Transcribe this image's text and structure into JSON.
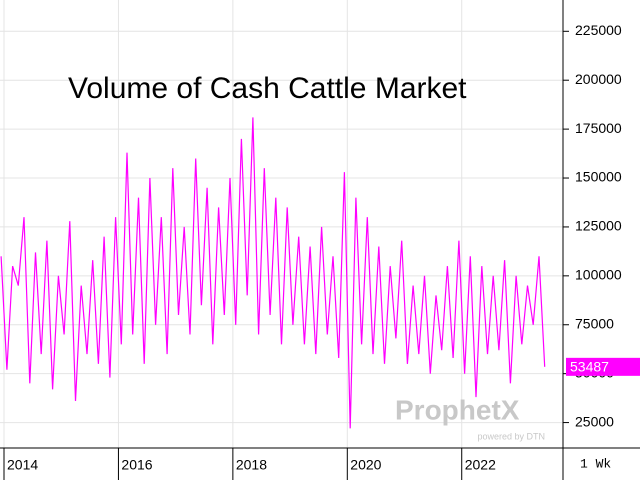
{
  "chart_data": {
    "type": "line",
    "title": "Volume of Cash Cattle Market",
    "watermark": "ProphetX",
    "watermark_sub": "powered by DTN",
    "interval": "1 Wk",
    "grid": true,
    "xlim": [
      2013.93,
      2023.77
    ],
    "xticks": [
      2014,
      2016,
      2018,
      2020,
      2022
    ],
    "ylim": [
      12000,
      241000
    ],
    "yticks": [
      25000,
      50000,
      75000,
      100000,
      125000,
      150000,
      175000,
      200000,
      225000
    ],
    "x": [
      2013.95,
      2014.05,
      2014.15,
      2014.25,
      2014.35,
      2014.45,
      2014.55,
      2014.65,
      2014.75,
      2014.85,
      2014.95,
      2015.05,
      2015.15,
      2015.25,
      2015.35,
      2015.45,
      2015.55,
      2015.65,
      2015.75,
      2015.85,
      2015.95,
      2016.05,
      2016.15,
      2016.25,
      2016.35,
      2016.45,
      2016.55,
      2016.65,
      2016.75,
      2016.85,
      2016.95,
      2017.05,
      2017.15,
      2017.25,
      2017.35,
      2017.45,
      2017.55,
      2017.65,
      2017.75,
      2017.85,
      2017.95,
      2018.05,
      2018.15,
      2018.25,
      2018.35,
      2018.45,
      2018.55,
      2018.65,
      2018.75,
      2018.85,
      2018.95,
      2019.05,
      2019.15,
      2019.25,
      2019.35,
      2019.45,
      2019.55,
      2019.65,
      2019.75,
      2019.85,
      2019.95,
      2020.05,
      2020.15,
      2020.25,
      2020.35,
      2020.45,
      2020.55,
      2020.65,
      2020.75,
      2020.85,
      2020.95,
      2021.05,
      2021.15,
      2021.25,
      2021.35,
      2021.45,
      2021.55,
      2021.65,
      2021.75,
      2021.85,
      2021.95,
      2022.05,
      2022.15,
      2022.25,
      2022.35,
      2022.45,
      2022.55,
      2022.65,
      2022.75,
      2022.85,
      2022.95,
      2023.05,
      2023.15,
      2023.25,
      2023.35,
      2023.45
    ],
    "series": [
      {
        "name": "Volume",
        "color": "#ff00ff",
        "values": [
          110000,
          52000,
          105000,
          95000,
          130000,
          45000,
          112000,
          60000,
          118000,
          42000,
          100000,
          70000,
          128000,
          36000,
          95000,
          60000,
          108000,
          55000,
          120000,
          48000,
          130000,
          65000,
          163000,
          70000,
          140000,
          55000,
          150000,
          75000,
          130000,
          60000,
          155000,
          80000,
          125000,
          70000,
          160000,
          85000,
          145000,
          65000,
          135000,
          80000,
          150000,
          75000,
          170000,
          90000,
          181000,
          70000,
          155000,
          80000,
          140000,
          65000,
          135000,
          75000,
          120000,
          65000,
          115000,
          60000,
          125000,
          70000,
          110000,
          58000,
          153000,
          22000,
          140000,
          65000,
          130000,
          60000,
          115000,
          55000,
          105000,
          68000,
          118000,
          55000,
          95000,
          60000,
          100000,
          50000,
          90000,
          62000,
          105000,
          58000,
          118000,
          50000,
          110000,
          38000,
          105000,
          60000,
          100000,
          62000,
          108000,
          45000,
          100000,
          65000,
          95000,
          75000,
          110000,
          53487
        ]
      }
    ]
  }
}
